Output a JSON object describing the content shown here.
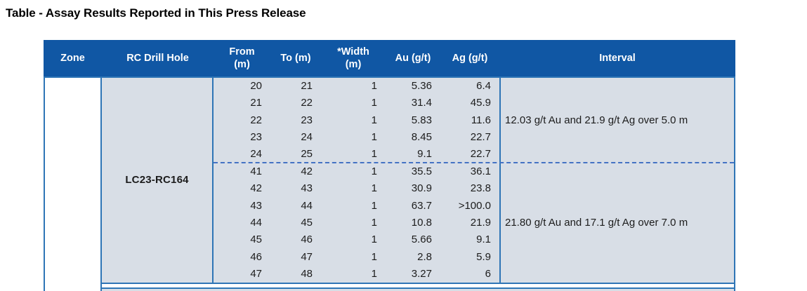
{
  "title": "Table - Assay Results Reported in This Press Release",
  "colors": {
    "header_bg": "#1057A4",
    "header_text": "#FFFFFF",
    "border_blue": "#2E75B6",
    "dashed_separator": "#4472C4",
    "row_bg": "#D8DEE6",
    "body_text": "#1C1C1C"
  },
  "table": {
    "header": {
      "zone": "Zone",
      "drill_hole": "RC Drill Hole",
      "from_line1": "From",
      "from_line2": "(m)",
      "to": "To (m)",
      "width_line1": "*Width",
      "width_line2": "(m)",
      "au": "Au (g/t)",
      "ag": "Ag (g/t)",
      "interval": "Interval"
    },
    "zone": "",
    "drill_hole": "LC23-RC164",
    "groups": [
      {
        "rows": [
          [
            "20",
            "21",
            "1",
            "5.36",
            "6.4"
          ],
          [
            "21",
            "22",
            "1",
            "31.4",
            "45.9"
          ],
          [
            "22",
            "23",
            "1",
            "5.83",
            "11.6"
          ],
          [
            "23",
            "24",
            "1",
            "8.45",
            "22.7"
          ],
          [
            "24",
            "25",
            "1",
            "9.1",
            "22.7"
          ]
        ],
        "interval": "12.03 g/t Au and 21.9 g/t Ag over 5.0 m"
      },
      {
        "rows": [
          [
            "41",
            "42",
            "1",
            "35.5",
            "36.1"
          ],
          [
            "42",
            "43",
            "1",
            "30.9",
            "23.8"
          ],
          [
            "43",
            "44",
            "1",
            "63.7",
            ">100.0"
          ],
          [
            "44",
            "45",
            "1",
            "10.8",
            "21.9"
          ],
          [
            "45",
            "46",
            "1",
            "5.66",
            "9.1"
          ],
          [
            "46",
            "47",
            "1",
            "2.8",
            "5.9"
          ],
          [
            "47",
            "48",
            "1",
            "3.27",
            "6"
          ]
        ],
        "interval": "21.80 g/t Au and 17.1 g/t Ag over 7.0 m"
      }
    ]
  }
}
